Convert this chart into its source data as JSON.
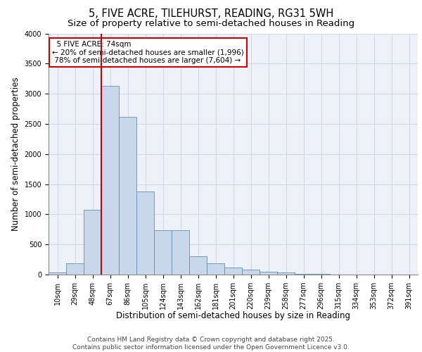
{
  "title_line1": "5, FIVE ACRE, TILEHURST, READING, RG31 5WH",
  "title_line2": "Size of property relative to semi-detached houses in Reading",
  "xlabel": "Distribution of semi-detached houses by size in Reading",
  "ylabel": "Number of semi-detached properties",
  "categories": [
    "10sqm",
    "29sqm",
    "48sqm",
    "67sqm",
    "86sqm",
    "105sqm",
    "124sqm",
    "143sqm",
    "162sqm",
    "181sqm",
    "201sqm",
    "220sqm",
    "239sqm",
    "258sqm",
    "277sqm",
    "296sqm",
    "315sqm",
    "334sqm",
    "353sqm",
    "372sqm",
    "391sqm"
  ],
  "values": [
    30,
    185,
    1070,
    3130,
    2620,
    1380,
    730,
    730,
    305,
    185,
    120,
    80,
    45,
    30,
    15,
    10,
    5,
    3,
    3,
    2,
    1
  ],
  "bar_color": "#c8d8ea",
  "bar_edge_color": "#6090b0",
  "background_color": "#eef2f8",
  "grid_color": "#d0d8e8",
  "property_label": "5 FIVE ACRE: 74sqm",
  "pct_smaller": 20,
  "pct_larger": 78,
  "n_smaller": 1996,
  "n_larger": 7604,
  "vline_bin_index": 3,
  "vline_color": "#cc0000",
  "annotation_box_color": "#cc0000",
  "ylim": [
    0,
    4000
  ],
  "yticks": [
    0,
    500,
    1000,
    1500,
    2000,
    2500,
    3000,
    3500,
    4000
  ],
  "footer_line1": "Contains HM Land Registry data © Crown copyright and database right 2025.",
  "footer_line2": "Contains public sector information licensed under the Open Government Licence v3.0.",
  "title_fontsize": 10.5,
  "subtitle_fontsize": 9.5,
  "axis_label_fontsize": 8.5,
  "tick_fontsize": 7,
  "annotation_fontsize": 7.5,
  "footer_fontsize": 6.5
}
